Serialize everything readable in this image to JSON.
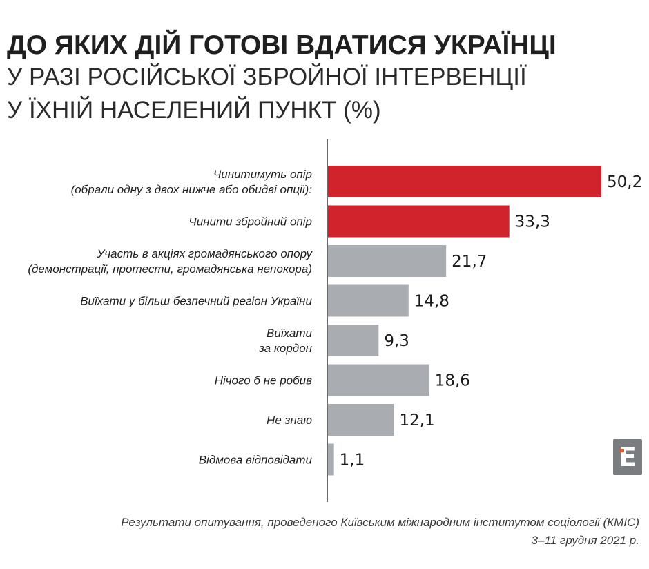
{
  "header": {
    "title_line1": "ДО ЯКИХ ДІЙ ГОТОВІ ВДАТИСЯ УКРАЇНЦІ",
    "title_line2": "У РАЗІ РОСІЙСЬКОЇ ЗБРОЙНОЇ ІНТЕРВЕНЦІЇ",
    "title_line3": "У ЇХНІЙ НАСЕЛЕНИЙ ПУНКТ (%)"
  },
  "chart_data": {
    "type": "bar",
    "orientation": "horizontal",
    "categories": [
      [
        "Чинитимуть опір",
        "(обрали одну з двох нижче або обидві опції):"
      ],
      [
        "Чинити збройний опір"
      ],
      [
        "Участь в акціях громадянського опору",
        "(демонстрації, протести, громадянська непокора)"
      ],
      [
        "Виїхати у більш безпечний регіон України"
      ],
      [
        "Виїхати",
        "за кордон"
      ],
      [
        "Нічого б не робив"
      ],
      [
        "Не знаю"
      ],
      [
        "Відмова відповідати"
      ]
    ],
    "values": [
      50.2,
      33.3,
      21.7,
      14.8,
      9.3,
      18.6,
      12.1,
      1.1
    ],
    "value_labels": [
      "50,2",
      "33,3",
      "21,7",
      "14,8",
      "9,3",
      "18,6",
      "12,1",
      "1,1"
    ],
    "bar_colors": [
      "#d1232b",
      "#d1232b",
      "#a9acb0",
      "#a9acb0",
      "#a9acb0",
      "#a9acb0",
      "#a9acb0",
      "#a9acb0"
    ],
    "xlim": [
      0,
      50.2
    ],
    "grid": false,
    "legend": "none"
  },
  "logo": {
    "letter": "Е",
    "color": "#7a7d80",
    "accent": "#e05a2b"
  },
  "footer": {
    "line1": "Результати опитування, проведеного Київським міжнародним інститутом соціології (КМІС)",
    "line2": "3–11 грудня 2021 р."
  }
}
